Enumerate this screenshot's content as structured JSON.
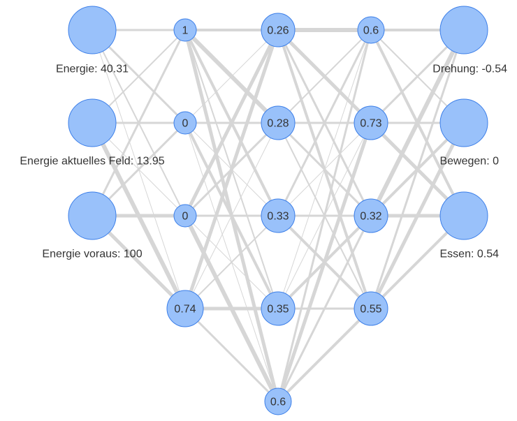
{
  "network": {
    "inputs": [
      {
        "label": "Energie: 40.31"
      },
      {
        "label": "Energie aktuelles Feld: 13.95"
      },
      {
        "label": "Energie voraus: 100"
      }
    ],
    "hidden1": [
      "1",
      "0",
      "0",
      "0.74"
    ],
    "hidden2": [
      "0.26",
      "0.28",
      "0.33",
      "0.35",
      "0.6"
    ],
    "hidden3": [
      "0.6",
      "0.73",
      "0.32",
      "0.55"
    ],
    "outputs": [
      {
        "label": "Drehung: -0.54"
      },
      {
        "label": "Bewegen: 0"
      },
      {
        "label": "Essen: 0.54"
      }
    ]
  },
  "colors": {
    "node_fill": "#99c1fa",
    "node_stroke": "#3b7ee8",
    "edge": "#d6d6d6",
    "text": "#333333"
  }
}
